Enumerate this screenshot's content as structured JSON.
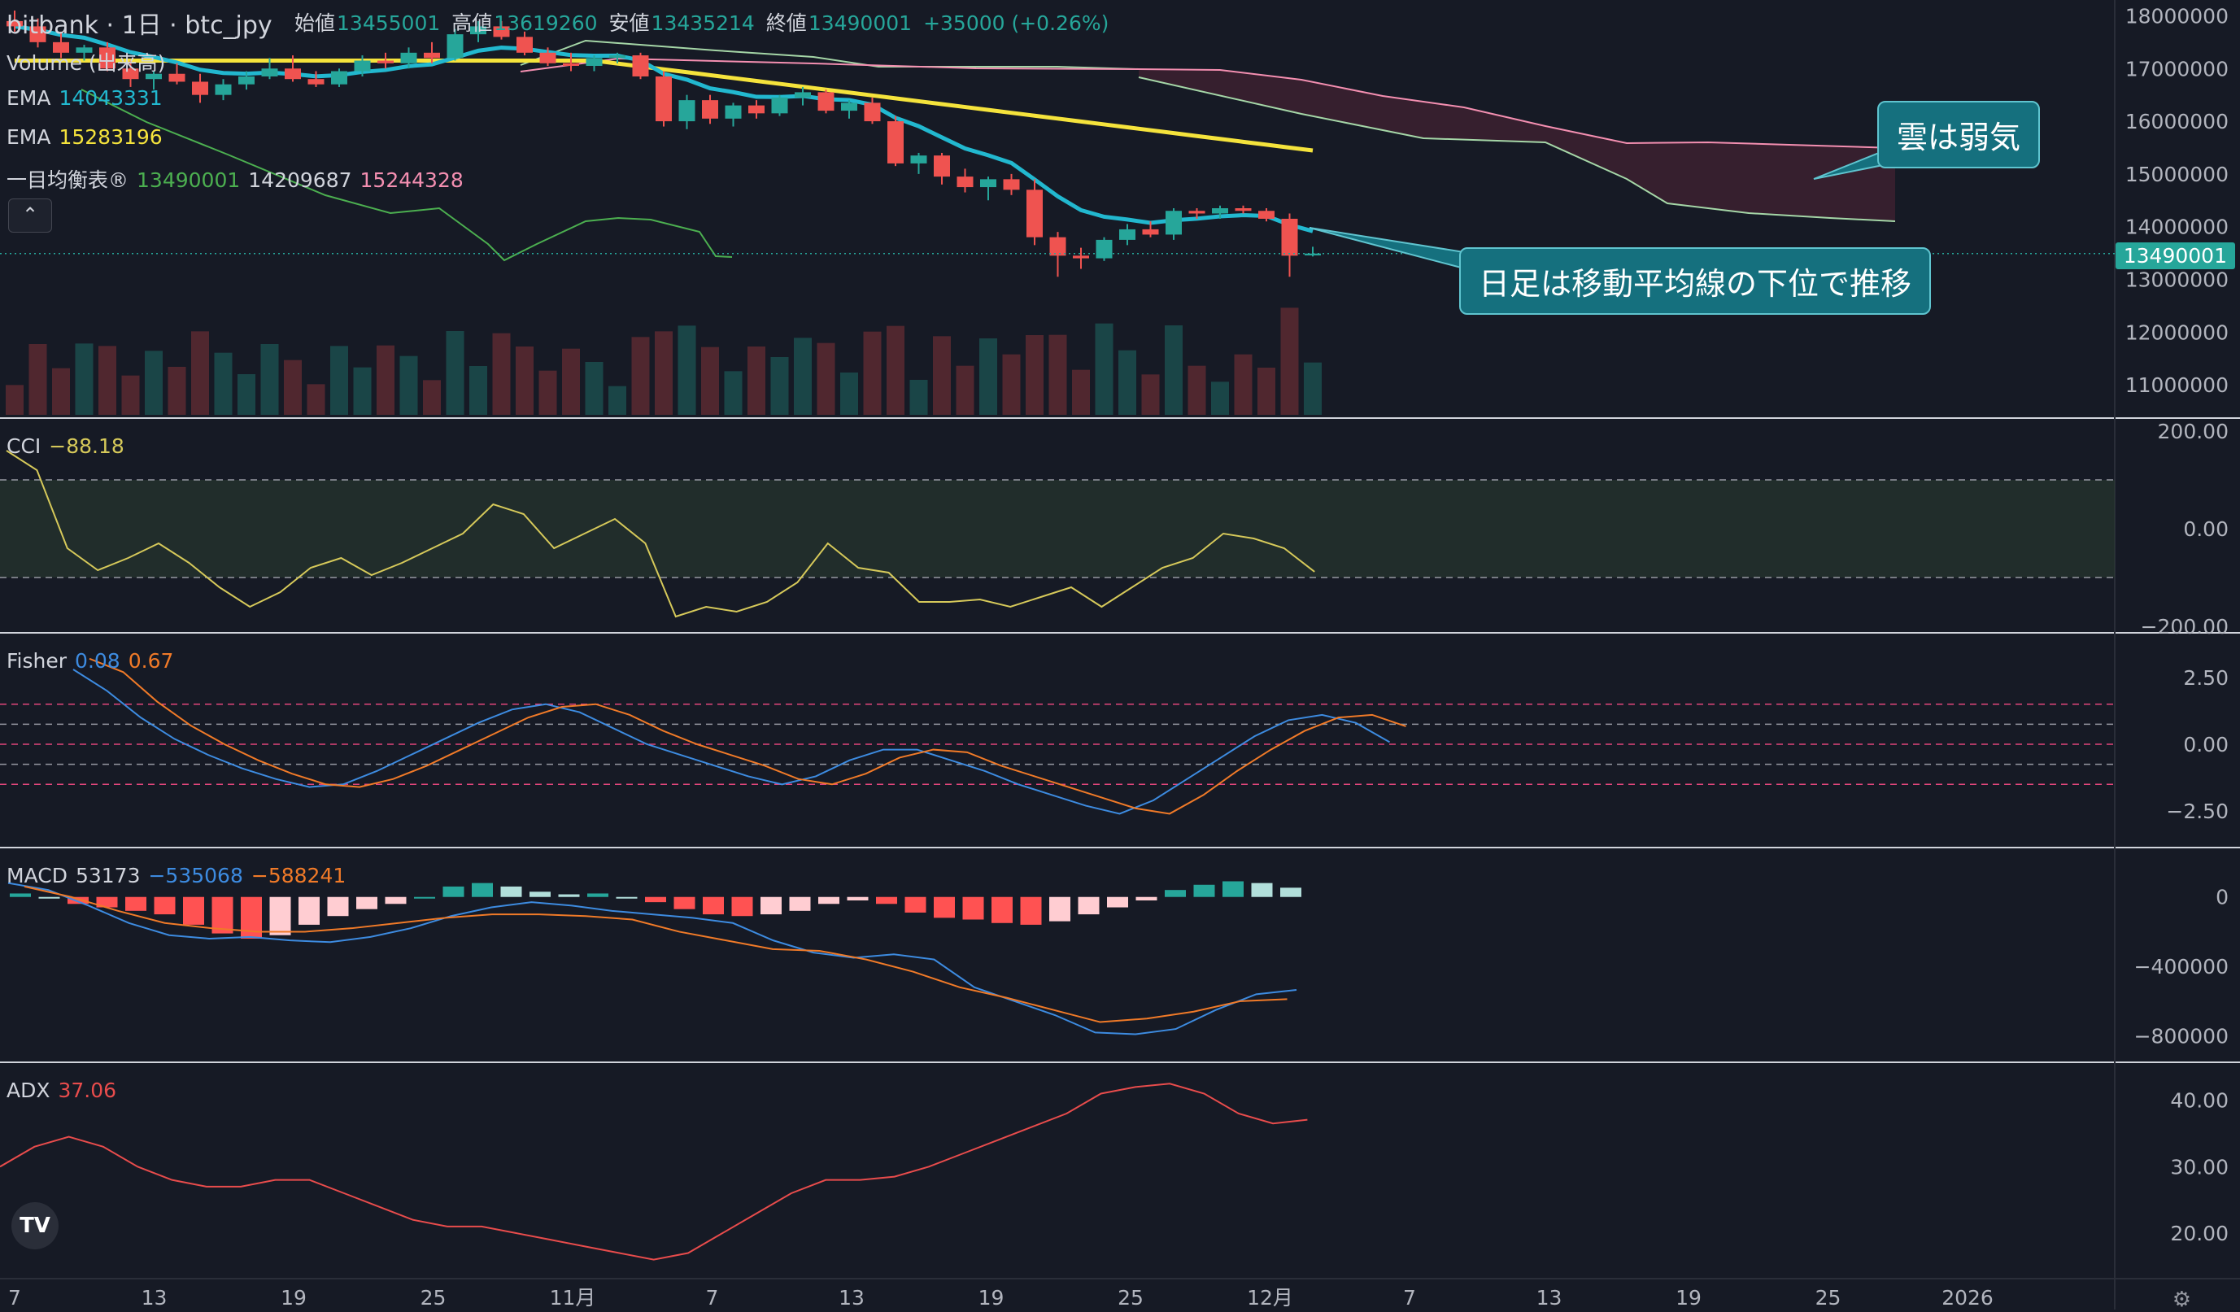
{
  "header": {
    "title": "bitbank · 1日 · btc_jpy",
    "ohlc": [
      {
        "k": "始値",
        "v": "13455001"
      },
      {
        "k": "高値",
        "v": "13619260"
      },
      {
        "k": "安値",
        "v": "13435214"
      },
      {
        "k": "終値",
        "v": "13490001"
      },
      {
        "k": "",
        "v": "+35000 (+0.26%)"
      }
    ]
  },
  "legend": {
    "volume": "Volume (出来高)",
    "ema1_label": "EMA",
    "ema1_value": "14043331",
    "ema2_label": "EMA",
    "ema2_value": "15283196",
    "ichimoku_label": "一目均衡表®",
    "ichimoku_v1": "13490001",
    "ichimoku_v2": "14209687",
    "ichimoku_v3": "15244328",
    "cci_label": "CCI",
    "cci_value": "−88.18",
    "fisher_label": "Fisher",
    "fisher_v1": "0.08",
    "fisher_v2": "0.67",
    "macd_label": "MACD",
    "macd_v1": "53173",
    "macd_v2": "−535068",
    "macd_v3": "−588241",
    "adx_label": "ADX",
    "adx_value": "37.06"
  },
  "callouts": {
    "cloud": "雲は弱気",
    "trend": "日足は移動平均線の下位で推移"
  },
  "price_tag": "13490001",
  "logo": "TV",
  "colors": {
    "background": "#161a25",
    "up": "#26a69a",
    "down": "#ef5350",
    "ema_fast": "#22b8cf",
    "ema_slow": "#f5e33c",
    "cloud": "#3a2030",
    "cci": "#d6c95a",
    "fisher_1": "#3d8be0",
    "fisher_2": "#f07a28",
    "adx": "#e84c4c"
  },
  "chart_data": [
    {
      "type": "candlestick",
      "pane": "price",
      "axis_ticks": [
        "18000000",
        "17000000",
        "16000000",
        "15000000",
        "14000000",
        "13000000",
        "12000000",
        "11000000"
      ],
      "x_ticks": [
        "7",
        "13",
        "19",
        "25",
        "11月",
        "7",
        "13",
        "19",
        "25",
        "12月",
        "7",
        "13",
        "19",
        "25",
        "2026"
      ],
      "candles": [
        [
          17900000,
          18100000,
          17700000,
          17800000
        ],
        [
          17800000,
          17950000,
          17400000,
          17500000
        ],
        [
          17500000,
          17700000,
          17200000,
          17300000
        ],
        [
          17300000,
          17450000,
          17150000,
          17400000
        ],
        [
          17400000,
          17500000,
          16950000,
          17000000
        ],
        [
          17000000,
          17150000,
          16650000,
          16800000
        ],
        [
          16800000,
          16950000,
          16600000,
          16900000
        ],
        [
          16900000,
          17100000,
          16700000,
          16750000
        ],
        [
          16750000,
          16900000,
          16350000,
          16500000
        ],
        [
          16500000,
          16800000,
          16400000,
          16700000
        ],
        [
          16700000,
          16950000,
          16600000,
          16850000
        ],
        [
          16850000,
          17200000,
          16800000,
          17000000
        ],
        [
          17000000,
          17250000,
          16750000,
          16800000
        ],
        [
          16800000,
          16950000,
          16650000,
          16700000
        ],
        [
          16700000,
          17000000,
          16650000,
          16950000
        ],
        [
          16950000,
          17250000,
          16850000,
          17150000
        ],
        [
          17150000,
          17300000,
          17000000,
          17100000
        ],
        [
          17100000,
          17400000,
          17000000,
          17300000
        ],
        [
          17300000,
          17500000,
          17100000,
          17200000
        ],
        [
          17200000,
          17750000,
          17150000,
          17650000
        ],
        [
          17650000,
          17900000,
          17500000,
          17800000
        ],
        [
          17800000,
          17900000,
          17550000,
          17600000
        ],
        [
          17600000,
          17700000,
          17250000,
          17300000
        ],
        [
          17300000,
          17400000,
          17050000,
          17100000
        ],
        [
          17100000,
          17300000,
          16950000,
          17050000
        ],
        [
          17050000,
          17250000,
          16950000,
          17200000
        ],
        [
          17200000,
          17300000,
          17100000,
          17250000
        ],
        [
          17250000,
          17300000,
          16800000,
          16850000
        ],
        [
          16850000,
          16950000,
          15900000,
          16000000
        ],
        [
          16000000,
          16500000,
          15850000,
          16400000
        ],
        [
          16400000,
          16500000,
          15950000,
          16050000
        ],
        [
          16050000,
          16350000,
          15900000,
          16300000
        ],
        [
          16300000,
          16400000,
          16050000,
          16150000
        ],
        [
          16150000,
          16500000,
          16100000,
          16450000
        ],
        [
          16450000,
          16650000,
          16300000,
          16550000
        ],
        [
          16550000,
          16600000,
          16150000,
          16200000
        ],
        [
          16200000,
          16400000,
          16050000,
          16350000
        ],
        [
          16350000,
          16450000,
          15950000,
          16000000
        ],
        [
          16000000,
          16100000,
          15150000,
          15200000
        ],
        [
          15200000,
          15400000,
          15000000,
          15350000
        ],
        [
          15350000,
          15400000,
          14800000,
          14950000
        ],
        [
          14950000,
          15100000,
          14650000,
          14750000
        ],
        [
          14750000,
          14950000,
          14500000,
          14900000
        ],
        [
          14900000,
          15000000,
          14600000,
          14700000
        ],
        [
          14700000,
          14900000,
          13650000,
          13800000
        ],
        [
          13800000,
          13900000,
          13050000,
          13450000
        ],
        [
          13450000,
          13600000,
          13200000,
          13400000
        ],
        [
          13400000,
          13800000,
          13350000,
          13750000
        ],
        [
          13750000,
          14050000,
          13650000,
          13950000
        ],
        [
          13950000,
          14100000,
          13800000,
          13850000
        ],
        [
          13850000,
          14350000,
          13750000,
          14300000
        ],
        [
          14300000,
          14350000,
          14150000,
          14250000
        ],
        [
          14250000,
          14400000,
          14150000,
          14350000
        ],
        [
          14350000,
          14400000,
          14250000,
          14300000
        ],
        [
          14300000,
          14350000,
          14100000,
          14150000
        ],
        [
          14150000,
          14250000,
          13050000,
          13450000
        ],
        [
          13455001,
          13619260,
          13435214,
          13490001
        ]
      ],
      "ema_fast_value": 14043331,
      "ema_slow_value": 15283196,
      "ichimoku": [
        13490001,
        14209687,
        15244328
      ]
    },
    {
      "type": "line",
      "pane": "CCI",
      "name": "CCI",
      "last": -88.18,
      "ylim": [
        -200,
        200
      ],
      "ticks": [
        "200.00",
        "0.00",
        "−200.00"
      ],
      "values": [
        160,
        120,
        -40,
        -85,
        -60,
        -30,
        -70,
        -120,
        -160,
        -130,
        -80,
        -60,
        -95,
        -70,
        -40,
        -10,
        50,
        30,
        -40,
        -10,
        20,
        -30,
        -180,
        -160,
        -170,
        -150,
        -110,
        -30,
        -80,
        -90,
        -150,
        -150,
        -145,
        -160,
        -140,
        -120,
        -160,
        -120,
        -80,
        -60,
        -10,
        -20,
        -40,
        -88.18
      ]
    },
    {
      "type": "line",
      "pane": "Fisher",
      "name": "Fisher",
      "last": [
        0.08,
        0.67
      ],
      "ylim": [
        -3.5,
        3.5
      ],
      "ticks": [
        "2.50",
        "0.00",
        "−2.50"
      ],
      "values1": [
        2.8,
        2.0,
        1.0,
        0.2,
        -0.4,
        -0.9,
        -1.3,
        -1.6,
        -1.5,
        -1.0,
        -0.4,
        0.2,
        0.8,
        1.3,
        1.5,
        1.2,
        0.6,
        0.0,
        -0.4,
        -0.8,
        -1.2,
        -1.5,
        -1.2,
        -0.6,
        -0.2,
        -0.2,
        -0.6,
        -1.0,
        -1.5,
        -1.9,
        -2.3,
        -2.6,
        -2.1,
        -1.3,
        -0.5,
        0.3,
        0.9,
        1.1,
        0.8,
        0.08
      ],
      "values2": [
        3.2,
        2.7,
        1.6,
        0.7,
        0.0,
        -0.6,
        -1.1,
        -1.5,
        -1.6,
        -1.3,
        -0.8,
        -0.2,
        0.4,
        1.0,
        1.4,
        1.5,
        1.1,
        0.5,
        0.0,
        -0.4,
        -0.8,
        -1.3,
        -1.5,
        -1.1,
        -0.5,
        -0.2,
        -0.3,
        -0.8,
        -1.2,
        -1.6,
        -2.0,
        -2.4,
        -2.6,
        -1.9,
        -1.0,
        -0.2,
        0.5,
        1.0,
        1.1,
        0.67
      ],
      "levels": [
        1.5,
        0.75,
        0,
        -0.75,
        -1.5
      ]
    },
    {
      "type": "line",
      "pane": "MACD",
      "name": "MACD",
      "last": [
        53173,
        -535068,
        -588241
      ],
      "ylim": [
        -900000,
        200000
      ],
      "ticks": [
        "0",
        "−400000",
        "−800000"
      ],
      "histogram": [
        20000,
        0,
        -40000,
        -60000,
        -80000,
        -100000,
        -160000,
        -210000,
        -240000,
        -220000,
        -160000,
        -110000,
        -70000,
        -40000,
        0,
        60000,
        80000,
        60000,
        30000,
        15000,
        20000,
        0,
        -30000,
        -70000,
        -100000,
        -110000,
        -100000,
        -80000,
        -40000,
        -20000,
        -40000,
        -90000,
        -120000,
        -130000,
        -150000,
        -160000,
        -140000,
        -100000,
        -60000,
        -20000,
        40000,
        70000,
        90000,
        80000,
        53173
      ],
      "macd": [
        80000,
        40000,
        -50000,
        -150000,
        -220000,
        -240000,
        -230000,
        -250000,
        -260000,
        -230000,
        -180000,
        -110000,
        -60000,
        -30000,
        -50000,
        -80000,
        -100000,
        -120000,
        -150000,
        -250000,
        -320000,
        -350000,
        -330000,
        -360000,
        -520000,
        -600000,
        -680000,
        -780000,
        -790000,
        -760000,
        -650000,
        -560000,
        -535068
      ],
      "signal": [
        60000,
        0,
        -80000,
        -150000,
        -180000,
        -200000,
        -200000,
        -180000,
        -150000,
        -120000,
        -100000,
        -100000,
        -110000,
        -130000,
        -200000,
        -250000,
        -300000,
        -310000,
        -360000,
        -430000,
        -520000,
        -580000,
        -650000,
        -720000,
        -700000,
        -660000,
        -600000,
        -588241
      ]
    },
    {
      "type": "line",
      "pane": "ADX",
      "name": "ADX",
      "last": 37.06,
      "ylim": [
        14,
        44
      ],
      "ticks": [
        "40.00",
        "30.00",
        "20.00"
      ],
      "values": [
        30,
        33,
        34.5,
        33,
        30,
        28,
        27,
        27,
        28,
        28,
        26,
        24,
        22,
        21,
        21,
        20,
        19,
        18,
        17,
        16,
        17,
        20,
        23,
        26,
        28,
        28,
        28.5,
        30,
        32,
        34,
        36,
        38,
        41,
        42,
        42.5,
        41,
        38,
        36.5,
        37.06
      ]
    }
  ]
}
